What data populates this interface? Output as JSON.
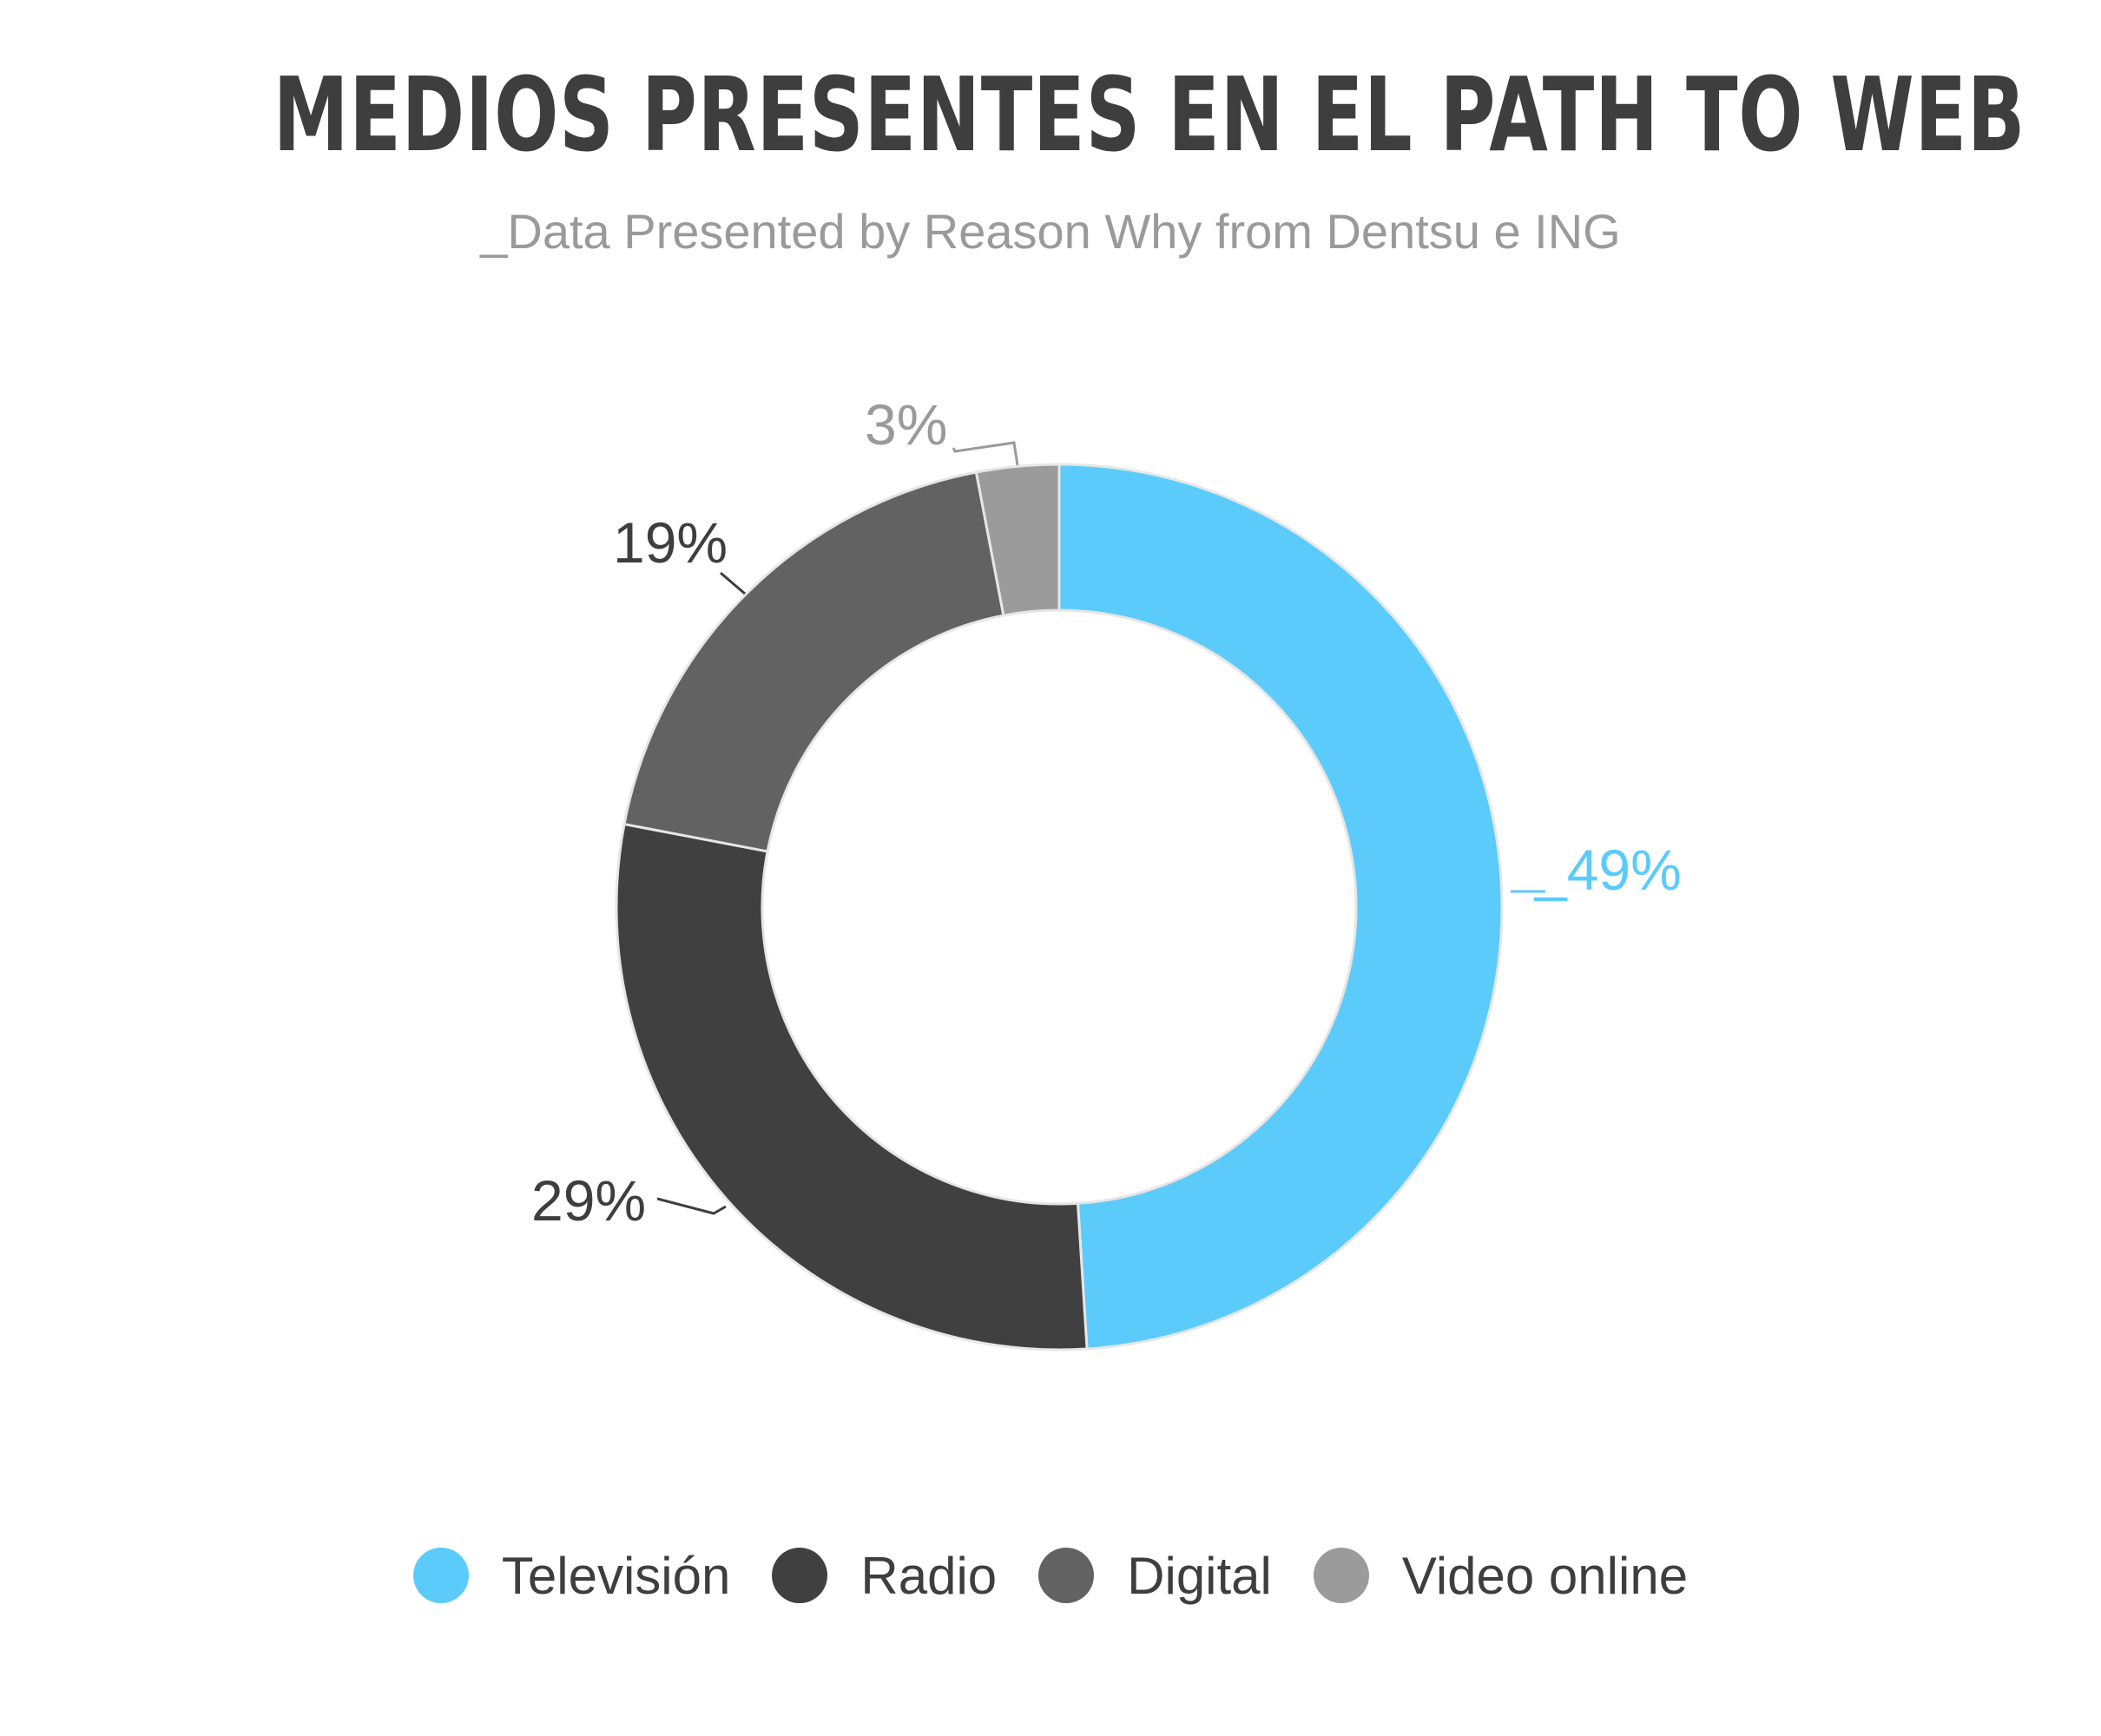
{
  "title": "MEDIOS PRESENTES EN EL PATH TO WEB",
  "subtitle": "_Data Presented by Reason Why from Dentsu e ING",
  "chart_data": {
    "type": "pie",
    "donut": true,
    "title": "MEDIOS PRESENTES EN EL PATH TO WEB",
    "subtitle": "_Data Presented by Reason Why from Dentsu e ING",
    "categories": [
      "Televisión",
      "Radio",
      "Digital",
      "Video online"
    ],
    "values": [
      49,
      29,
      19,
      3
    ],
    "labels": [
      "_49%",
      "29%",
      "19%",
      "3%"
    ],
    "colors": [
      "#5bcbfb",
      "#404040",
      "#626262",
      "#9b9b9b"
    ],
    "label_colors": [
      "#5bcbfb",
      "#3e3e3e",
      "#3e3e3e",
      "#9a9a9a"
    ],
    "legend_position": "bottom"
  }
}
